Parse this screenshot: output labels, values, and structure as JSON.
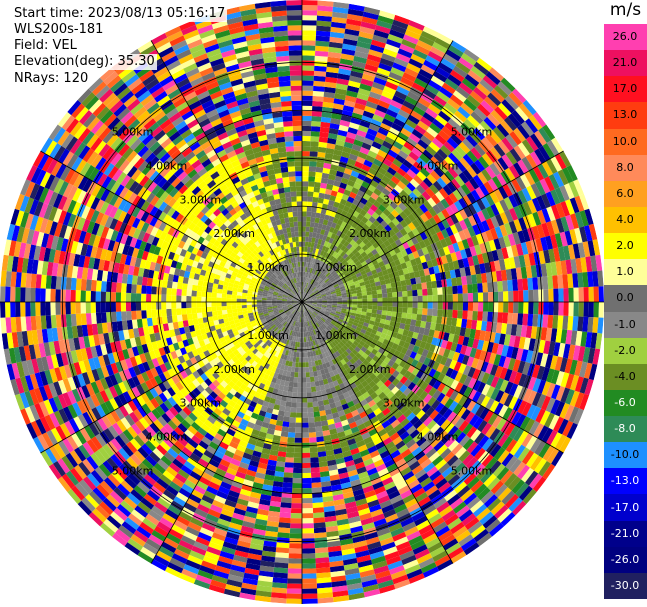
{
  "header": {
    "start_time": "Start time: 2023/08/13 05:16:17",
    "instrument": "WLS200s-181",
    "field": "Field: VEL",
    "elevation": "Elevation(deg): 35.30",
    "nrays": "NRays: 120"
  },
  "chart_data": {
    "type": "ppi-polar",
    "field": "VEL",
    "nrays": 120,
    "elevation_deg": 35.3,
    "range_rings_km": [
      1,
      2,
      3,
      4,
      5
    ],
    "ring_labels": [
      "1.00km",
      "2.00km",
      "3.00km",
      "4.00km",
      "5.00km"
    ],
    "max_range_km": 6.3,
    "colorbar": {
      "unit": "m/s",
      "ticks": [
        "26.0",
        "21.0",
        "17.0",
        "13.0",
        "10.0",
        "8.0",
        "6.0",
        "4.0",
        "2.0",
        "1.0",
        "0.0",
        "-1.0",
        "-2.0",
        "-4.0",
        "-6.0",
        "-8.0",
        "-10.0",
        "-13.0",
        "-17.0",
        "-21.0",
        "-26.0",
        "-30.0"
      ],
      "colors": [
        "#ff3fb0",
        "#ee1060",
        "#ff1020",
        "#ff3c10",
        "#ff6a20",
        "#ff8a5a",
        "#ffa020",
        "#ffc000",
        "#ffff00",
        "#ffff99",
        "#707070",
        "#888888",
        "#a0d040",
        "#6b8e23",
        "#228b22",
        "#2e8b57",
        "#1e90ff",
        "#0000ff",
        "#0000cd",
        "#00008b",
        "#000080",
        "#202060"
      ]
    }
  }
}
